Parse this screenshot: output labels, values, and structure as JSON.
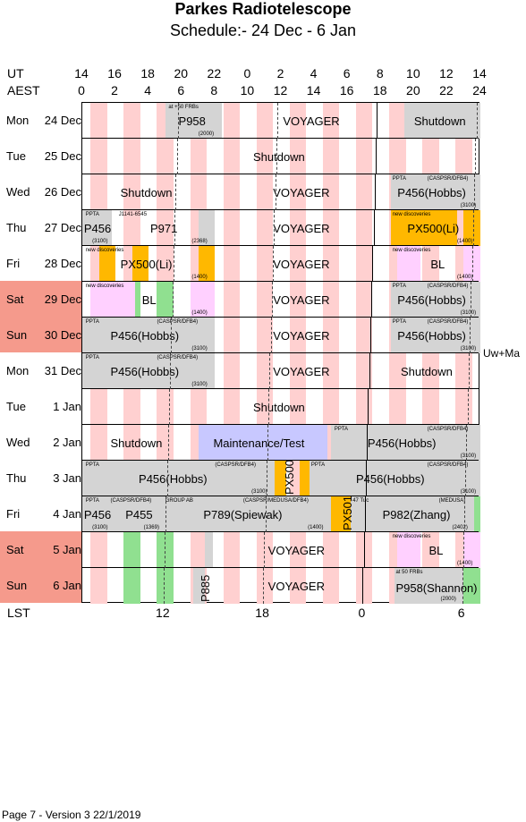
{
  "title": "Parkes Radiotelescope",
  "subtitle": "Schedule:- 24 Dec - 6  Jan",
  "header": {
    "ut_label": "UT",
    "aest_label": "AEST",
    "ut_ticks": [
      "14",
      "16",
      "18",
      "20",
      "22",
      "0",
      "2",
      "4",
      "6",
      "8",
      "10",
      "12",
      "14"
    ],
    "aest_ticks": [
      "0",
      "2",
      "4",
      "6",
      "8",
      "10",
      "12",
      "14",
      "16",
      "18",
      "20",
      "22",
      "24"
    ]
  },
  "lst": {
    "label": "LST",
    "ticks": [
      "12",
      "18",
      "0",
      "6"
    ]
  },
  "side_note": "Uw+Ma",
  "footer": "Page 7 - Version 3  22/1/2019",
  "days": [
    {
      "dow": "Mon",
      "date": "24 Dec",
      "weekend": false
    },
    {
      "dow": "Tue",
      "date": "25 Dec",
      "weekend": false
    },
    {
      "dow": "Wed",
      "date": "26 Dec",
      "weekend": false
    },
    {
      "dow": "Thu",
      "date": "27 Dec",
      "weekend": false
    },
    {
      "dow": "Fri",
      "date": "28 Dec",
      "weekend": false
    },
    {
      "dow": "Sat",
      "date": "29 Dec",
      "weekend": true
    },
    {
      "dow": "Sun",
      "date": "30 Dec",
      "weekend": true
    },
    {
      "dow": "Mon",
      "date": "31 Dec",
      "weekend": false
    },
    {
      "dow": "Tue",
      "date": "1 Jan",
      "weekend": false
    },
    {
      "dow": "Wed",
      "date": "2 Jan",
      "weekend": false
    },
    {
      "dow": "Thu",
      "date": "3 Jan",
      "weekend": false
    },
    {
      "dow": "Fri",
      "date": "4 Jan",
      "weekend": false
    },
    {
      "dow": "Sat",
      "date": "5 Jan",
      "weekend": true
    },
    {
      "dow": "Sun",
      "date": "6 Jan",
      "weekend": true
    }
  ],
  "colors": {
    "pink": "#ffd0d0",
    "green": "#90e090",
    "gray": "#d4d4d4",
    "orange": "#ffb800",
    "lavender": "#ffd0ff",
    "blue": "#c8c8ff",
    "weekend": "#f59a8c"
  },
  "labels": {
    "p958": "P958",
    "voyager": "VOYAGER",
    "shutdown": "Shutdown",
    "p456": "P456",
    "p456hobbs": "P456(Hobbs)",
    "p971": "P971",
    "px500": "PX500",
    "px500li": "PX500(Li)",
    "bl": "BL",
    "maint": "Maintenance/Test",
    "p455": "P455",
    "p789": "P789(Spiewak)",
    "px501": "PX501",
    "p982": "P982(Zhang)",
    "p885": "P885",
    "p958s": "P958(Shannon)",
    "s_frbs": "at +50  FRBs",
    "s_frbs2": "at  50  FRBs",
    "s_2000": "(2000)",
    "s_pta": "PPTA",
    "s_casp": "(CASPSR/DFB4)",
    "s_3100": "(3100)",
    "s_2368": "(2368)",
    "s_1400": "(1400)",
    "s_1369": "(1369)",
    "s_2402": "(2402)",
    "s_j1141": "J1141-6545",
    "s_newdisc": "new discoveries",
    "s_groupab": "GROUP AB",
    "s_medusa_long": "(CASPSR/MEDUSA/DFB4)",
    "s_47tuc": "47 Tuc",
    "s_medusa": "(MEDUSA)"
  }
}
